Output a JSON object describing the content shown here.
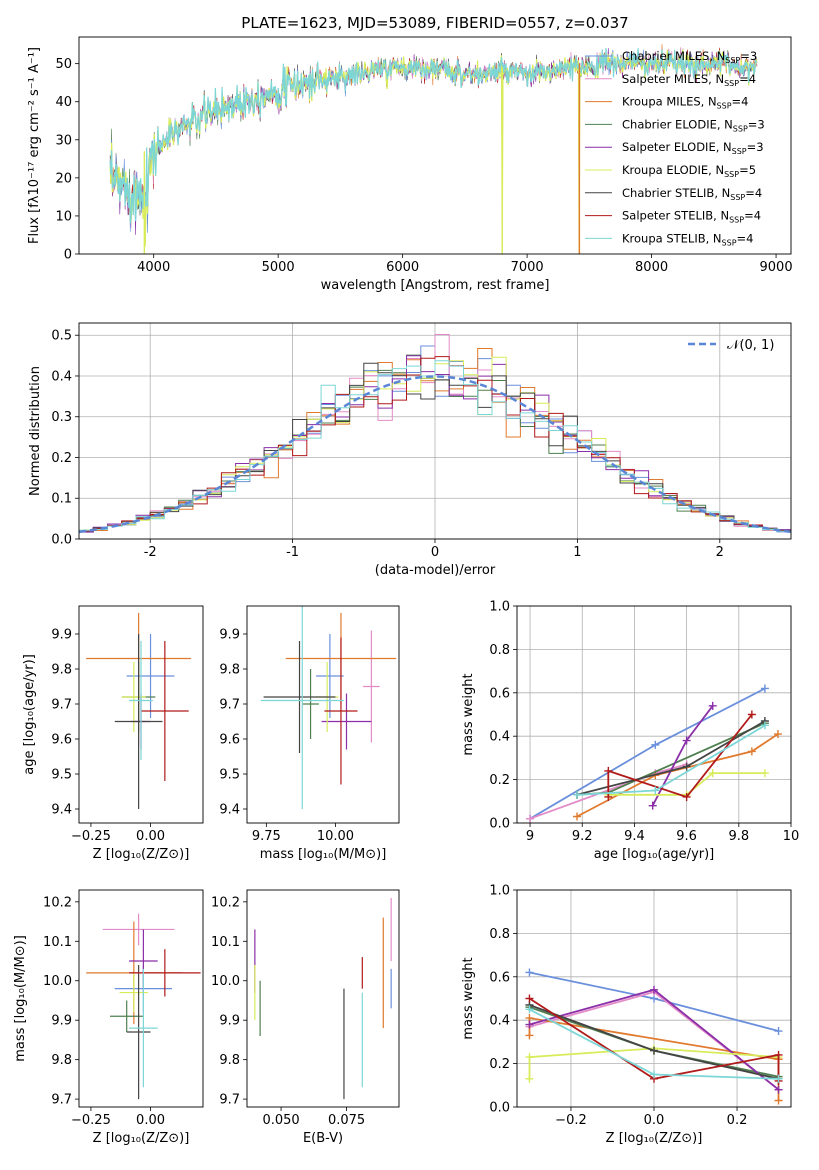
{
  "title": "PLATE=1623, MJD=53089, FIBERID=0557, z=0.037",
  "colors": {
    "chabrier_miles": "#6a8fdc",
    "salpeter_miles": "#e38bc8",
    "kroupa_miles": "#e07a2e",
    "chabrier_elodie": "#4f7f4f",
    "salpeter_elodie": "#8b2fa8",
    "kroupa_elodie": "#d8ec5a",
    "chabrier_stelib": "#444444",
    "salpeter_stelib": "#b11a1a",
    "kroupa_stelib": "#7dd6d6"
  },
  "chart_data": [
    {
      "id": "spectrum",
      "type": "line",
      "title": "PLATE=1623, MJD=53089, FIBERID=0557, z=0.037",
      "xlabel": "wavelength [Angstrom, rest frame]",
      "ylabel": "Flux [fλ10⁻¹⁷ erg cm⁻² s⁻¹ A⁻¹]",
      "xlim": [
        3400,
        9120
      ],
      "ylim": [
        0,
        57
      ],
      "xticks": [
        4000,
        5000,
        6000,
        7000,
        8000,
        9000
      ],
      "yticks": [
        0,
        10,
        20,
        30,
        40,
        50
      ],
      "continuum": {
        "x": [
          3650,
          3700,
          3800,
          3900,
          4000,
          4200,
          4400,
          4600,
          4800,
          5000,
          5200,
          5400,
          5600,
          5800,
          6000,
          6200,
          6400,
          6600,
          6800,
          7000,
          7200,
          7400,
          7600,
          7800,
          8000,
          8200,
          8400,
          8600,
          8800
        ],
        "y": [
          18,
          19,
          17,
          15,
          27,
          33,
          36,
          39,
          41,
          43,
          45,
          46,
          47,
          48,
          49,
          49,
          48,
          47,
          48,
          47,
          48,
          49,
          50,
          50,
          50,
          50,
          50,
          50,
          49
        ]
      },
      "dropouts": [
        {
          "x": 3930,
          "y": 2
        },
        {
          "x": 6800,
          "y": 0
        },
        {
          "x": 7420,
          "y": 0
        }
      ],
      "legend_position": "top-right",
      "legend": [
        {
          "label": "Chabrier MILES, N",
          "nssp": "3"
        },
        {
          "label": "Salpeter MILES, N",
          "nssp": "4"
        },
        {
          "label": "Kroupa MILES, N",
          "nssp": "4"
        },
        {
          "label": "Chabrier ELODIE, N",
          "nssp": "3"
        },
        {
          "label": "Salpeter ELODIE, N",
          "nssp": "3"
        },
        {
          "label": "Kroupa ELODIE, N",
          "nssp": "5"
        },
        {
          "label": "Chabrier STELIB, N",
          "nssp": "4"
        },
        {
          "label": "Salpeter STELIB, N",
          "nssp": "4"
        },
        {
          "label": "Kroupa STELIB, N",
          "nssp": "4"
        }
      ],
      "legend_sub": "SSP"
    },
    {
      "id": "residuals",
      "type": "histogram",
      "xlabel": "(data-model)/error",
      "ylabel": "Normed distribution",
      "xlim": [
        -2.5,
        2.5
      ],
      "ylim": [
        0,
        0.53
      ],
      "xticks": [
        -2,
        -1,
        0,
        1,
        2
      ],
      "yticks": [
        0.0,
        0.1,
        0.2,
        0.3,
        0.4,
        0.5
      ],
      "grid": true,
      "bin_width": 0.1,
      "curve_label": "𝒩(0, 1)",
      "legend_position": "top-right"
    },
    {
      "id": "age_vs_Z",
      "type": "errorbar",
      "xlabel": "Z [log₁₀(Z/Z⊙)]",
      "ylabel": "age  [log₁₀(age/yr)]",
      "xlim": [
        -0.3,
        0.22
      ],
      "ylim": [
        9.36,
        9.98
      ],
      "xticks": [
        -0.25,
        0.0
      ],
      "xticklabels": [
        "−0.25",
        "0.00"
      ],
      "yticks": [
        9.4,
        9.5,
        9.6,
        9.7,
        9.8,
        9.9
      ],
      "points": [
        {
          "c": "chabrier_miles",
          "x": 0.0,
          "xe": 0.1,
          "y": 9.78,
          "ye": 0.12
        },
        {
          "c": "salpeter_miles",
          "x": -0.05,
          "xe": 0.03,
          "y": 9.65,
          "ye": 0.07
        },
        {
          "c": "kroupa_miles",
          "x": -0.05,
          "xe": 0.22,
          "y": 9.83,
          "ye": 0.13
        },
        {
          "c": "chabrier_elodie",
          "x": -0.05,
          "xe": 0.07,
          "y": 9.72,
          "ye": 0.1
        },
        {
          "c": "salpeter_elodie",
          "x": -0.04,
          "xe": 0.04,
          "y": 9.65,
          "ye": 0.08
        },
        {
          "c": "kroupa_elodie",
          "x": -0.07,
          "xe": 0.05,
          "y": 9.72,
          "ye": 0.1
        },
        {
          "c": "chabrier_stelib",
          "x": -0.05,
          "xe": 0.1,
          "y": 9.65,
          "ye": 0.25
        },
        {
          "c": "salpeter_stelib",
          "x": 0.06,
          "xe": 0.1,
          "y": 9.68,
          "ye": 0.2
        },
        {
          "c": "kroupa_stelib",
          "x": -0.04,
          "xe": 0.05,
          "y": 9.71,
          "ye": 0.17
        }
      ]
    },
    {
      "id": "age_vs_mass",
      "type": "errorbar",
      "xlabel": "mass [log₁₀(M/M⊙)]",
      "xlim": [
        9.68,
        10.23
      ],
      "ylim": [
        9.36,
        9.98
      ],
      "xticks": [
        9.75,
        10.0
      ],
      "xticklabels": [
        "9.75",
        "10.00"
      ],
      "yticks": [
        9.4,
        9.5,
        9.6,
        9.7,
        9.8,
        9.9
      ],
      "points": [
        {
          "c": "chabrier_miles",
          "x": 9.98,
          "xe": 0.05,
          "y": 9.78,
          "ye": 0.12
        },
        {
          "c": "salpeter_miles",
          "x": 10.13,
          "xe": 0.03,
          "y": 9.75,
          "ye": 0.16
        },
        {
          "c": "kroupa_miles",
          "x": 10.02,
          "xe": 0.2,
          "y": 9.83,
          "ye": 0.13
        },
        {
          "c": "chabrier_elodie",
          "x": 9.91,
          "xe": 0.03,
          "y": 9.7,
          "ye": 0.1
        },
        {
          "c": "salpeter_elodie",
          "x": 10.04,
          "xe": 0.09,
          "y": 9.65,
          "ye": 0.08
        },
        {
          "c": "kroupa_elodie",
          "x": 9.97,
          "xe": 0.04,
          "y": 9.72,
          "ye": 0.1
        },
        {
          "c": "chabrier_stelib",
          "x": 9.87,
          "xe": 0.13,
          "y": 9.72,
          "ye": 0.16
        },
        {
          "c": "salpeter_stelib",
          "x": 10.02,
          "xe": 0.06,
          "y": 9.68,
          "ye": 0.21
        },
        {
          "c": "kroupa_stelib",
          "x": 9.88,
          "xe": 0.15,
          "y": 9.71,
          "ye": 0.31
        }
      ]
    },
    {
      "id": "weight_vs_age",
      "type": "line",
      "xlabel": "age  [log₁₀(age/yr)]",
      "ylabel": "mass weight",
      "xlim": [
        8.95,
        10.0
      ],
      "ylim": [
        0,
        1
      ],
      "xticks": [
        9.0,
        9.2,
        9.4,
        9.6,
        9.8,
        10.0
      ],
      "yticks": [
        0.0,
        0.2,
        0.4,
        0.6,
        0.8,
        1.0
      ],
      "grid": true,
      "series": [
        {
          "c": "chabrier_miles",
          "x": [
            9.0,
            9.48,
            9.9
          ],
          "y": [
            0.02,
            0.36,
            0.62
          ]
        },
        {
          "c": "salpeter_miles",
          "x": [
            9.0,
            9.48,
            9.6
          ],
          "y": [
            0.02,
            0.23,
            0.27
          ]
        },
        {
          "c": "kroupa_miles",
          "x": [
            9.18,
            9.48,
            9.85,
            9.95
          ],
          "y": [
            0.03,
            0.22,
            0.33,
            0.41
          ]
        },
        {
          "c": "chabrier_elodie",
          "x": [
            9.18,
            9.3,
            9.9
          ],
          "y": [
            0.13,
            0.14,
            0.46
          ]
        },
        {
          "c": "salpeter_elodie",
          "x": [
            9.47,
            9.6,
            9.7
          ],
          "y": [
            0.08,
            0.38,
            0.54
          ]
        },
        {
          "c": "kroupa_elodie",
          "x": [
            9.3,
            9.6,
            9.7,
            9.9
          ],
          "y": [
            0.13,
            0.13,
            0.23,
            0.23
          ]
        },
        {
          "c": "chabrier_stelib",
          "x": [
            9.18,
            9.6,
            9.9
          ],
          "y": [
            0.13,
            0.26,
            0.47
          ]
        },
        {
          "c": "salpeter_stelib",
          "x": [
            9.3,
            9.3,
            9.6,
            9.85
          ],
          "y": [
            0.12,
            0.24,
            0.12,
            0.5
          ]
        },
        {
          "c": "kroupa_stelib",
          "x": [
            9.18,
            9.48,
            9.9
          ],
          "y": [
            0.13,
            0.15,
            0.45
          ]
        }
      ]
    },
    {
      "id": "mass_vs_Z",
      "type": "errorbar",
      "xlabel": "Z [log₁₀(Z/Z⊙)]",
      "ylabel": "mass [log₁₀(M/M⊙)]",
      "xlim": [
        -0.3,
        0.22
      ],
      "ylim": [
        9.68,
        10.23
      ],
      "xticks": [
        -0.25,
        0.0
      ],
      "xticklabels": [
        "−0.25",
        "0.00"
      ],
      "yticks": [
        9.7,
        9.8,
        9.9,
        10.0,
        10.1,
        10.2
      ],
      "points": [
        {
          "c": "chabrier_miles",
          "x": -0.03,
          "xe": 0.12,
          "y": 9.98,
          "ye": 0.06
        },
        {
          "c": "salpeter_miles",
          "x": -0.05,
          "xe": 0.15,
          "y": 10.13,
          "ye": 0.04
        },
        {
          "c": "kroupa_miles",
          "x": -0.07,
          "xe": 0.2,
          "y": 10.02,
          "ye": 0.13
        },
        {
          "c": "chabrier_elodie",
          "x": -0.1,
          "xe": 0.07,
          "y": 9.91,
          "ye": 0.04
        },
        {
          "c": "salpeter_elodie",
          "x": -0.03,
          "xe": 0.06,
          "y": 10.05,
          "ye": 0.08
        },
        {
          "c": "kroupa_elodie",
          "x": -0.07,
          "xe": 0.06,
          "y": 9.97,
          "ye": 0.05
        },
        {
          "c": "chabrier_stelib",
          "x": -0.05,
          "xe": 0.05,
          "y": 9.87,
          "ye": 0.17
        },
        {
          "c": "salpeter_stelib",
          "x": 0.06,
          "xe": 0.15,
          "y": 10.02,
          "ye": 0.06
        },
        {
          "c": "kroupa_stelib",
          "x": -0.03,
          "xe": 0.06,
          "y": 9.88,
          "ye": 0.15
        }
      ]
    },
    {
      "id": "mass_vs_ebv",
      "type": "errorbar",
      "xlabel": "E(B-V)",
      "xlim": [
        0.037,
        0.095
      ],
      "ylim": [
        9.68,
        10.23
      ],
      "xticks": [
        0.05,
        0.075
      ],
      "xticklabels": [
        "0.050",
        "0.075"
      ],
      "yticks": [
        9.7,
        9.8,
        9.9,
        10.0,
        10.1,
        10.2
      ],
      "points": [
        {
          "c": "chabrier_miles",
          "x": 0.092,
          "y": 9.98,
          "ye": 0.05
        },
        {
          "c": "salpeter_miles",
          "x": 0.092,
          "y": 10.13,
          "ye": 0.08
        },
        {
          "c": "kroupa_miles",
          "x": 0.089,
          "y": 10.02,
          "ye": 0.14
        },
        {
          "c": "chabrier_elodie",
          "x": 0.042,
          "y": 9.93,
          "ye": 0.07
        },
        {
          "c": "salpeter_elodie",
          "x": 0.04,
          "y": 10.05,
          "ye": 0.08
        },
        {
          "c": "kroupa_elodie",
          "x": 0.04,
          "y": 9.97,
          "ye": 0.07
        },
        {
          "c": "chabrier_stelib",
          "x": 0.074,
          "y": 9.84,
          "ye": 0.14
        },
        {
          "c": "salpeter_stelib",
          "x": 0.081,
          "y": 10.02,
          "ye": 0.04
        },
        {
          "c": "kroupa_stelib",
          "x": 0.081,
          "y": 9.85,
          "ye": 0.12
        }
      ]
    },
    {
      "id": "weight_vs_Z",
      "type": "line",
      "xlabel": "Z [log₁₀(Z/Z⊙)]",
      "ylabel": "mass weight",
      "xlim": [
        -0.33,
        0.33
      ],
      "ylim": [
        0,
        1
      ],
      "xticks": [
        -0.2,
        0.0,
        0.2
      ],
      "xticklabels": [
        "−0.2",
        "0.0",
        "0.2"
      ],
      "yticks": [
        0.0,
        0.2,
        0.4,
        0.6,
        0.8,
        1.0
      ],
      "grid": true,
      "series": [
        {
          "c": "chabrier_miles",
          "x": [
            -0.3,
            0.0,
            0.3
          ],
          "y": [
            0.62,
            0.5,
            0.35
          ]
        },
        {
          "c": "salpeter_miles",
          "x": [
            -0.3,
            0.0,
            0.3
          ],
          "y": [
            0.37,
            0.53,
            0.08
          ]
        },
        {
          "c": "kroupa_miles",
          "x": [
            -0.3,
            -0.3,
            0.3,
            0.3
          ],
          "y": [
            0.33,
            0.41,
            0.22,
            0.03
          ]
        },
        {
          "c": "chabrier_elodie",
          "x": [
            -0.3,
            0.0,
            0.3
          ],
          "y": [
            0.46,
            0.26,
            0.14
          ]
        },
        {
          "c": "salpeter_elodie",
          "x": [
            -0.3,
            0.0,
            0.3
          ],
          "y": [
            0.38,
            0.54,
            0.08
          ]
        },
        {
          "c": "kroupa_elodie",
          "x": [
            -0.3,
            -0.3,
            0.0,
            0.3
          ],
          "y": [
            0.13,
            0.23,
            0.27,
            0.23
          ]
        },
        {
          "c": "chabrier_stelib",
          "x": [
            -0.3,
            0.0,
            0.3
          ],
          "y": [
            0.47,
            0.26,
            0.13
          ]
        },
        {
          "c": "salpeter_stelib",
          "x": [
            -0.3,
            0.0,
            0.3,
            0.3
          ],
          "y": [
            0.5,
            0.13,
            0.24,
            0.12
          ]
        },
        {
          "c": "kroupa_stelib",
          "x": [
            -0.3,
            0.0,
            0.3
          ],
          "y": [
            0.45,
            0.15,
            0.13
          ]
        }
      ]
    }
  ]
}
